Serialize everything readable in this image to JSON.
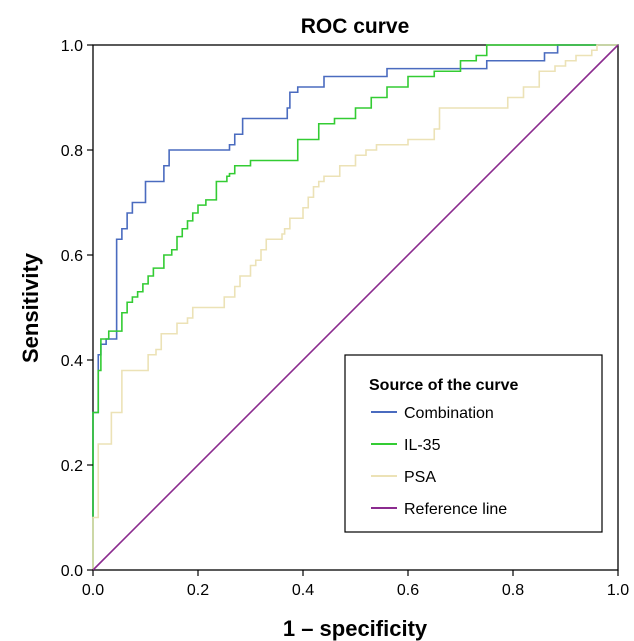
{
  "chart_data": {
    "type": "line",
    "title": "ROC curve",
    "xlabel": "1 – specificity",
    "ylabel": "Sensitivity",
    "xlim": [
      0,
      1
    ],
    "ylim": [
      0,
      1
    ],
    "x_ticks": [
      "0.0",
      "0.2",
      "0.4",
      "0.6",
      "0.8",
      "1.0"
    ],
    "y_ticks": [
      "0.0",
      "0.2",
      "0.4",
      "0.6",
      "0.8",
      "1.0"
    ],
    "grid": false,
    "legend": {
      "title": "Source of the curve",
      "placement": "bottom-right"
    },
    "series": [
      {
        "name": "Combination",
        "color": "#4a6bbf",
        "points": [
          [
            0,
            0
          ],
          [
            0,
            0.3
          ],
          [
            0.01,
            0.3
          ],
          [
            0.01,
            0.41
          ],
          [
            0.015,
            0.41
          ],
          [
            0.015,
            0.43
          ],
          [
            0.025,
            0.43
          ],
          [
            0.025,
            0.44
          ],
          [
            0.045,
            0.44
          ],
          [
            0.045,
            0.63
          ],
          [
            0.055,
            0.63
          ],
          [
            0.055,
            0.65
          ],
          [
            0.065,
            0.65
          ],
          [
            0.065,
            0.68
          ],
          [
            0.075,
            0.68
          ],
          [
            0.075,
            0.7
          ],
          [
            0.1,
            0.7
          ],
          [
            0.1,
            0.74
          ],
          [
            0.135,
            0.74
          ],
          [
            0.135,
            0.77
          ],
          [
            0.145,
            0.77
          ],
          [
            0.145,
            0.8
          ],
          [
            0.26,
            0.8
          ],
          [
            0.26,
            0.81
          ],
          [
            0.27,
            0.81
          ],
          [
            0.27,
            0.83
          ],
          [
            0.285,
            0.83
          ],
          [
            0.285,
            0.86
          ],
          [
            0.37,
            0.86
          ],
          [
            0.37,
            0.88
          ],
          [
            0.375,
            0.88
          ],
          [
            0.375,
            0.91
          ],
          [
            0.39,
            0.91
          ],
          [
            0.39,
            0.92
          ],
          [
            0.44,
            0.92
          ],
          [
            0.44,
            0.94
          ],
          [
            0.56,
            0.94
          ],
          [
            0.56,
            0.955
          ],
          [
            0.75,
            0.955
          ],
          [
            0.75,
            0.97
          ],
          [
            0.86,
            0.97
          ],
          [
            0.86,
            0.985
          ],
          [
            0.885,
            0.985
          ],
          [
            0.885,
            1.0
          ],
          [
            1.0,
            1.0
          ]
        ]
      },
      {
        "name": "IL-35",
        "color": "#33cc33",
        "points": [
          [
            0,
            0
          ],
          [
            0,
            0.3
          ],
          [
            0.01,
            0.3
          ],
          [
            0.01,
            0.38
          ],
          [
            0.015,
            0.38
          ],
          [
            0.015,
            0.44
          ],
          [
            0.03,
            0.44
          ],
          [
            0.03,
            0.455
          ],
          [
            0.055,
            0.455
          ],
          [
            0.055,
            0.49
          ],
          [
            0.065,
            0.49
          ],
          [
            0.065,
            0.51
          ],
          [
            0.075,
            0.51
          ],
          [
            0.075,
            0.52
          ],
          [
            0.085,
            0.52
          ],
          [
            0.085,
            0.53
          ],
          [
            0.095,
            0.53
          ],
          [
            0.095,
            0.545
          ],
          [
            0.105,
            0.545
          ],
          [
            0.105,
            0.56
          ],
          [
            0.115,
            0.56
          ],
          [
            0.115,
            0.575
          ],
          [
            0.135,
            0.575
          ],
          [
            0.135,
            0.6
          ],
          [
            0.15,
            0.6
          ],
          [
            0.15,
            0.61
          ],
          [
            0.16,
            0.61
          ],
          [
            0.16,
            0.635
          ],
          [
            0.17,
            0.635
          ],
          [
            0.17,
            0.65
          ],
          [
            0.18,
            0.65
          ],
          [
            0.18,
            0.665
          ],
          [
            0.19,
            0.665
          ],
          [
            0.19,
            0.68
          ],
          [
            0.2,
            0.68
          ],
          [
            0.2,
            0.695
          ],
          [
            0.215,
            0.695
          ],
          [
            0.215,
            0.705
          ],
          [
            0.235,
            0.705
          ],
          [
            0.235,
            0.74
          ],
          [
            0.255,
            0.74
          ],
          [
            0.255,
            0.75
          ],
          [
            0.26,
            0.75
          ],
          [
            0.26,
            0.755
          ],
          [
            0.27,
            0.755
          ],
          [
            0.27,
            0.77
          ],
          [
            0.3,
            0.77
          ],
          [
            0.3,
            0.78
          ],
          [
            0.39,
            0.78
          ],
          [
            0.39,
            0.82
          ],
          [
            0.43,
            0.82
          ],
          [
            0.43,
            0.85
          ],
          [
            0.46,
            0.85
          ],
          [
            0.46,
            0.86
          ],
          [
            0.5,
            0.86
          ],
          [
            0.5,
            0.88
          ],
          [
            0.53,
            0.88
          ],
          [
            0.53,
            0.9
          ],
          [
            0.56,
            0.9
          ],
          [
            0.56,
            0.92
          ],
          [
            0.6,
            0.92
          ],
          [
            0.6,
            0.94
          ],
          [
            0.65,
            0.94
          ],
          [
            0.65,
            0.95
          ],
          [
            0.7,
            0.95
          ],
          [
            0.7,
            0.97
          ],
          [
            0.73,
            0.97
          ],
          [
            0.73,
            0.98
          ],
          [
            0.75,
            0.98
          ],
          [
            0.75,
            1.0
          ],
          [
            1.0,
            1.0
          ]
        ]
      },
      {
        "name": "PSA",
        "color": "#ece2b6",
        "points": [
          [
            0,
            0
          ],
          [
            0,
            0.1
          ],
          [
            0.01,
            0.1
          ],
          [
            0.01,
            0.24
          ],
          [
            0.035,
            0.24
          ],
          [
            0.035,
            0.3
          ],
          [
            0.055,
            0.3
          ],
          [
            0.055,
            0.38
          ],
          [
            0.105,
            0.38
          ],
          [
            0.105,
            0.41
          ],
          [
            0.12,
            0.41
          ],
          [
            0.12,
            0.42
          ],
          [
            0.13,
            0.42
          ],
          [
            0.13,
            0.45
          ],
          [
            0.16,
            0.45
          ],
          [
            0.16,
            0.47
          ],
          [
            0.18,
            0.47
          ],
          [
            0.18,
            0.48
          ],
          [
            0.19,
            0.48
          ],
          [
            0.19,
            0.5
          ],
          [
            0.25,
            0.5
          ],
          [
            0.25,
            0.52
          ],
          [
            0.27,
            0.52
          ],
          [
            0.27,
            0.54
          ],
          [
            0.28,
            0.54
          ],
          [
            0.28,
            0.56
          ],
          [
            0.3,
            0.56
          ],
          [
            0.3,
            0.58
          ],
          [
            0.31,
            0.58
          ],
          [
            0.31,
            0.59
          ],
          [
            0.32,
            0.59
          ],
          [
            0.32,
            0.61
          ],
          [
            0.33,
            0.61
          ],
          [
            0.33,
            0.63
          ],
          [
            0.36,
            0.63
          ],
          [
            0.36,
            0.64
          ],
          [
            0.365,
            0.64
          ],
          [
            0.365,
            0.65
          ],
          [
            0.375,
            0.65
          ],
          [
            0.375,
            0.67
          ],
          [
            0.4,
            0.67
          ],
          [
            0.4,
            0.69
          ],
          [
            0.41,
            0.69
          ],
          [
            0.41,
            0.71
          ],
          [
            0.42,
            0.71
          ],
          [
            0.42,
            0.73
          ],
          [
            0.43,
            0.73
          ],
          [
            0.43,
            0.74
          ],
          [
            0.44,
            0.74
          ],
          [
            0.44,
            0.75
          ],
          [
            0.47,
            0.75
          ],
          [
            0.47,
            0.77
          ],
          [
            0.5,
            0.77
          ],
          [
            0.5,
            0.79
          ],
          [
            0.52,
            0.79
          ],
          [
            0.52,
            0.8
          ],
          [
            0.54,
            0.8
          ],
          [
            0.54,
            0.81
          ],
          [
            0.6,
            0.81
          ],
          [
            0.6,
            0.82
          ],
          [
            0.65,
            0.82
          ],
          [
            0.65,
            0.84
          ],
          [
            0.66,
            0.84
          ],
          [
            0.66,
            0.88
          ],
          [
            0.79,
            0.88
          ],
          [
            0.79,
            0.9
          ],
          [
            0.82,
            0.9
          ],
          [
            0.82,
            0.92
          ],
          [
            0.85,
            0.92
          ],
          [
            0.85,
            0.95
          ],
          [
            0.88,
            0.95
          ],
          [
            0.88,
            0.96
          ],
          [
            0.9,
            0.96
          ],
          [
            0.9,
            0.97
          ],
          [
            0.92,
            0.97
          ],
          [
            0.92,
            0.98
          ],
          [
            0.95,
            0.98
          ],
          [
            0.95,
            0.99
          ],
          [
            0.96,
            0.99
          ],
          [
            0.96,
            1.0
          ],
          [
            1.0,
            1.0
          ]
        ]
      },
      {
        "name": "Reference line",
        "color": "#8b2b8f",
        "points": [
          [
            0,
            0
          ],
          [
            1,
            1
          ]
        ]
      }
    ]
  }
}
